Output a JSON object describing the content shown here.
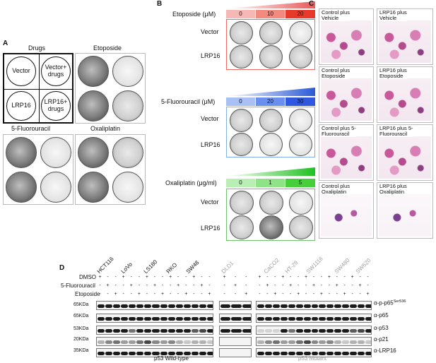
{
  "panel_labels": {
    "a": "A",
    "b": "B",
    "c": "C",
    "d": "D"
  },
  "panelA": {
    "drugs_title": "Drugs",
    "etoposide_title": "Etoposide",
    "fluorouracil_title": "5-Fluorouracil",
    "oxaliplatin_title": "Oxaliplatin",
    "legend_cells": [
      "Vector",
      "Vector+\ndrugs",
      "LRP16",
      "LRP16+\ndrugs"
    ]
  },
  "panelB": {
    "etoposide": {
      "label": "Etoposide (μM)",
      "concentrations": [
        "0",
        "10",
        "20"
      ],
      "color": "#e85a5a"
    },
    "fluorouracil": {
      "label": "5-Fluorouracil (μM)",
      "concentrations": [
        "0",
        "20",
        "30"
      ],
      "color": "#3b6fe0"
    },
    "oxaliplatin": {
      "label": "Oxaliplatin (μg/ml)",
      "concentrations": [
        "0",
        "1",
        "5"
      ],
      "color": "#3fbf3f"
    },
    "row_labels": [
      "Vector",
      "LRP16"
    ]
  },
  "panelC": {
    "captions": [
      "Control plus\nVehicle",
      "LRP16 plus\nVehicle",
      "Control plus\nEtoposide",
      "LRP16 plus\nEtoposide",
      "Control plus 5-\nFluorouracil",
      "LRP16 plus 5-\nFluorouracil",
      "Control plus\nOxaliplatin",
      "LRP16 plus\nOxaliplatin"
    ]
  },
  "panelD": {
    "treatment_rows": [
      "DMSO",
      "5-Fluorouracil",
      "Etoposide"
    ],
    "wildtype_lines": [
      "HCT116",
      "LoVo",
      "LS180",
      "RKO",
      "SW48"
    ],
    "dld1": "DLD1",
    "mutant_lines": [
      "CaCO2",
      "HT-29",
      "SW1116",
      "SW480",
      "SW620"
    ],
    "mw_markers": [
      "65KDa",
      "65KDa",
      "53KDa",
      "20KDa",
      "35KDa"
    ],
    "antibodies": [
      "α-p-p65",
      "α-p65",
      "α-p53",
      "α-p21",
      "α-LRP16"
    ],
    "phospho_site": "Ser536",
    "group_wildtype": "p53 Wild-type",
    "group_mutant": "p53 Mutant",
    "grey_color": "#a0a0a0"
  }
}
